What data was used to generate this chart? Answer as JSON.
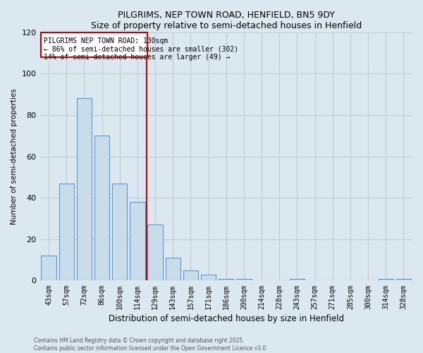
{
  "title": "PILGRIMS, NEP TOWN ROAD, HENFIELD, BN5 9DY",
  "subtitle": "Size of property relative to semi-detached houses in Henfield",
  "xlabel": "Distribution of semi-detached houses by size in Henfield",
  "ylabel": "Number of semi-detached properties",
  "bar_labels": [
    "43sqm",
    "57sqm",
    "72sqm",
    "86sqm",
    "100sqm",
    "114sqm",
    "129sqm",
    "143sqm",
    "157sqm",
    "171sqm",
    "186sqm",
    "200sqm",
    "214sqm",
    "228sqm",
    "243sqm",
    "257sqm",
    "271sqm",
    "285sqm",
    "300sqm",
    "314sqm",
    "328sqm"
  ],
  "bar_values": [
    12,
    47,
    88,
    70,
    47,
    38,
    27,
    11,
    5,
    3,
    1,
    1,
    0,
    0,
    1,
    0,
    0,
    0,
    0,
    1,
    1
  ],
  "bar_color": "#c9dcea",
  "bar_edge_color": "#5b9bd5",
  "red_line_index": 6,
  "property_label": "PILGRIMS NEP TOWN ROAD: 130sqm",
  "annotation_line1": "← 86% of semi-detached houses are smaller (302)",
  "annotation_line2": "14% of semi-detached houses are larger (49) →",
  "annotation_box_color": "#ffffff",
  "annotation_box_edge": "#cc0000",
  "ylim": [
    0,
    120
  ],
  "yticks": [
    0,
    20,
    40,
    60,
    80,
    100,
    120
  ],
  "background_color": "#dce8f0",
  "grid_color": "#c0cdd8",
  "footer_line1": "Contains HM Land Registry data © Crown copyright and database right 2025.",
  "footer_line2": "Contains public sector information licensed under the Open Government Licence v3.0."
}
